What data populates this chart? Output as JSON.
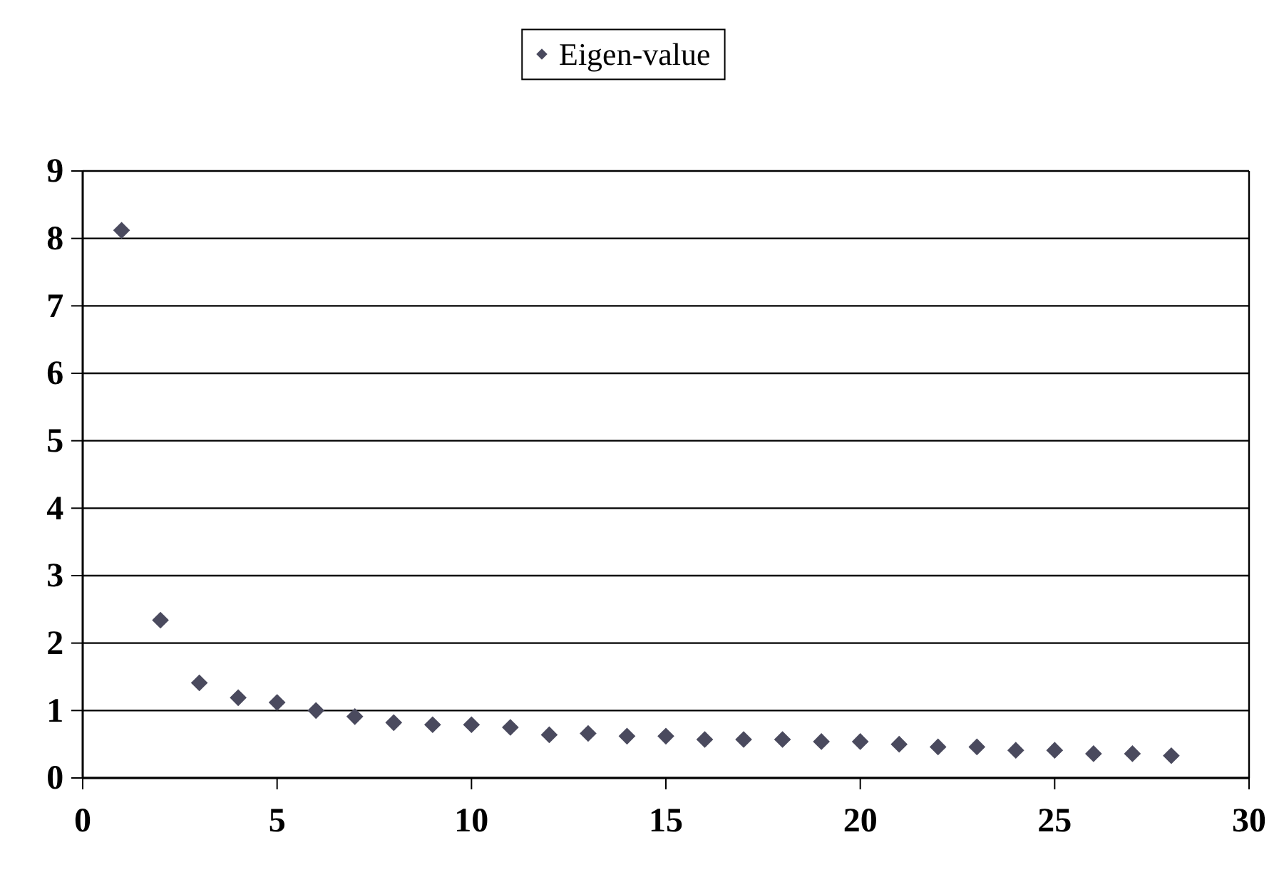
{
  "chart_data": {
    "type": "scatter",
    "x": [
      1,
      2,
      3,
      4,
      5,
      6,
      7,
      8,
      9,
      10,
      11,
      12,
      13,
      14,
      15,
      16,
      17,
      18,
      19,
      20,
      21,
      22,
      23,
      24,
      25,
      26,
      27,
      28
    ],
    "series": [
      {
        "name": "Eigen-value",
        "color": "#4a4a5e",
        "values": [
          8.12,
          2.34,
          1.41,
          1.19,
          1.12,
          1.0,
          0.91,
          0.82,
          0.79,
          0.79,
          0.75,
          0.64,
          0.66,
          0.62,
          0.62,
          0.57,
          0.57,
          0.57,
          0.54,
          0.54,
          0.5,
          0.46,
          0.46,
          0.41,
          0.41,
          0.36,
          0.36,
          0.33
        ]
      }
    ],
    "xlim": [
      0,
      30
    ],
    "xticks": [
      0,
      5,
      10,
      15,
      20,
      25,
      30
    ],
    "ylim": [
      0,
      9
    ],
    "yticks": [
      0,
      1,
      2,
      3,
      4,
      5,
      6,
      7,
      8,
      9
    ],
    "grid": "y",
    "legend": "top",
    "marker": "diamond"
  }
}
